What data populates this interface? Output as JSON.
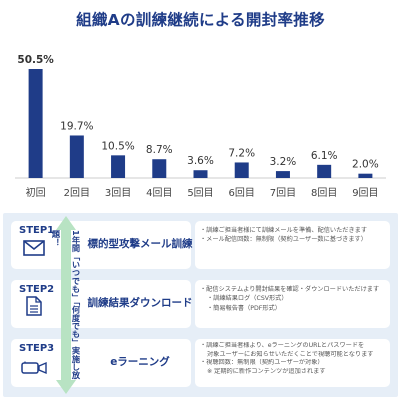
{
  "chart_data": {
    "type": "bar",
    "title": "組織Aの訓練継続による開封率推移",
    "categories": [
      "初回",
      "2回目",
      "3回目",
      "4回目",
      "5回目",
      "6回目",
      "7回目",
      "8回目",
      "9回目"
    ],
    "values": [
      50.5,
      19.7,
      10.5,
      8.7,
      3.6,
      7.2,
      3.2,
      6.1,
      2.0
    ],
    "value_labels": [
      "50.5%",
      "19.7%",
      "10.5%",
      "8.7%",
      "3.6%",
      "7.2%",
      "3.2%",
      "6.1%",
      "2.0%"
    ],
    "ylim": [
      0,
      50.5
    ],
    "grid": false,
    "colors": {
      "bar": "#1f3c88",
      "title": "#1f3c88"
    }
  },
  "steps": {
    "arrow_text": "1年間「いつでも」「何度でも」実施し放題！",
    "items": [
      {
        "label": "STEP1",
        "icon": "envelope-icon",
        "title": "標的型攻撃メール訓練",
        "desc": [
          "・訓練ご担当者様にて訓練メールを準備、配信いただきます",
          "・メール配信回数：無制限（契約ユーザー数に基づきます）"
        ]
      },
      {
        "label": "STEP2",
        "icon": "document-icon",
        "title": "訓練結果ダウンロード",
        "desc": [
          "・配信システムより開封結果を確認・ダウンロードいただけます",
          "・訓練結果ログ（CSV形式）",
          "・簡易報告書（PDF形式）"
        ]
      },
      {
        "label": "STEP3",
        "icon": "video-camera-icon",
        "title": "eラーニング",
        "desc": [
          "・訓練ご担当者様より、eラーニングのURLとパスワードを",
          "対象ユーザーにお知らせいただくことで視聴可能となります",
          "・視聴回数：無制限（契約ユーザーが対象）",
          "※ 定期的に新作コンテンツが追加されます"
        ]
      }
    ]
  }
}
